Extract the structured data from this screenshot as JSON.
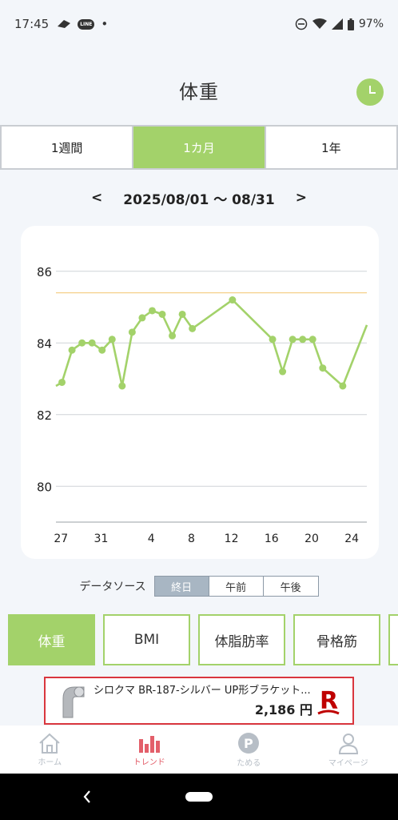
{
  "status": {
    "time": "17:45",
    "line_badge": "LINE",
    "dot": "•",
    "battery": "97%"
  },
  "header": {
    "title": "体重"
  },
  "period_tabs": [
    {
      "label": "1週間",
      "active": false
    },
    {
      "label": "1カ月",
      "active": true
    },
    {
      "label": "1年",
      "active": false
    }
  ],
  "date_range": {
    "prev": "<",
    "label": "2025/08/01 〜 08/31",
    "next": ">"
  },
  "chart_data": {
    "type": "line",
    "y_ticks": [
      86,
      84,
      82,
      80
    ],
    "ylim": [
      79,
      87
    ],
    "x_tick_labels": [
      "27",
      "31",
      "4",
      "8",
      "12",
      "16",
      "20",
      "24"
    ],
    "x_tick_days": [
      -5,
      -1,
      4,
      8,
      12,
      16,
      20,
      24
    ],
    "xlim": [
      -5.5,
      25.5
    ],
    "target_line": 85.4,
    "points": [
      {
        "x": -5.5,
        "y": 82.8
      },
      {
        "x": -4.9,
        "y": 82.9
      },
      {
        "x": -3.9,
        "y": 83.8
      },
      {
        "x": -2.9,
        "y": 84.0
      },
      {
        "x": -1.9,
        "y": 84.0
      },
      {
        "x": -0.9,
        "y": 83.8
      },
      {
        "x": 0.1,
        "y": 84.1
      },
      {
        "x": 1.1,
        "y": 82.8
      },
      {
        "x": 2.1,
        "y": 84.3
      },
      {
        "x": 3.1,
        "y": 84.7
      },
      {
        "x": 4.1,
        "y": 84.9
      },
      {
        "x": 5.1,
        "y": 84.8
      },
      {
        "x": 6.1,
        "y": 84.2
      },
      {
        "x": 7.1,
        "y": 84.8
      },
      {
        "x": 8.1,
        "y": 84.4
      },
      {
        "x": 12.1,
        "y": 85.2
      },
      {
        "x": 16.1,
        "y": 84.1
      },
      {
        "x": 17.1,
        "y": 83.2
      },
      {
        "x": 18.1,
        "y": 84.1
      },
      {
        "x": 19.1,
        "y": 84.1
      },
      {
        "x": 20.1,
        "y": 84.1
      },
      {
        "x": 21.1,
        "y": 83.3
      },
      {
        "x": 23.1,
        "y": 82.8
      },
      {
        "x": 25.5,
        "y": 84.5
      }
    ],
    "line_color": "#a3d26a",
    "target_color": "#f5d08a",
    "grid": true
  },
  "datasource": {
    "label": "データソース",
    "options": [
      {
        "label": "終日",
        "active": true
      },
      {
        "label": "午前",
        "active": false
      },
      {
        "label": "午後",
        "active": false
      }
    ]
  },
  "metric_tabs": [
    {
      "label": "体重",
      "active": true
    },
    {
      "label": "BMI",
      "active": false
    },
    {
      "label": "体脂肪率",
      "active": false
    },
    {
      "label": "骨格筋",
      "active": false
    }
  ],
  "ad": {
    "title": "シロクマ BR-187-シルバー UP形ブラケット...",
    "price": "2,186 円"
  },
  "bottom_nav": [
    {
      "label": "ホーム",
      "icon": "home-icon",
      "active": false
    },
    {
      "label": "トレンド",
      "icon": "bar-chart-icon",
      "active": true
    },
    {
      "label": "ためる",
      "icon": "points-icon",
      "active": false
    },
    {
      "label": "マイページ",
      "icon": "user-icon",
      "active": false
    }
  ],
  "colors": {
    "accent": "#a3d26a",
    "active_nav": "#e35f6a",
    "ad_border": "#d9363e"
  }
}
